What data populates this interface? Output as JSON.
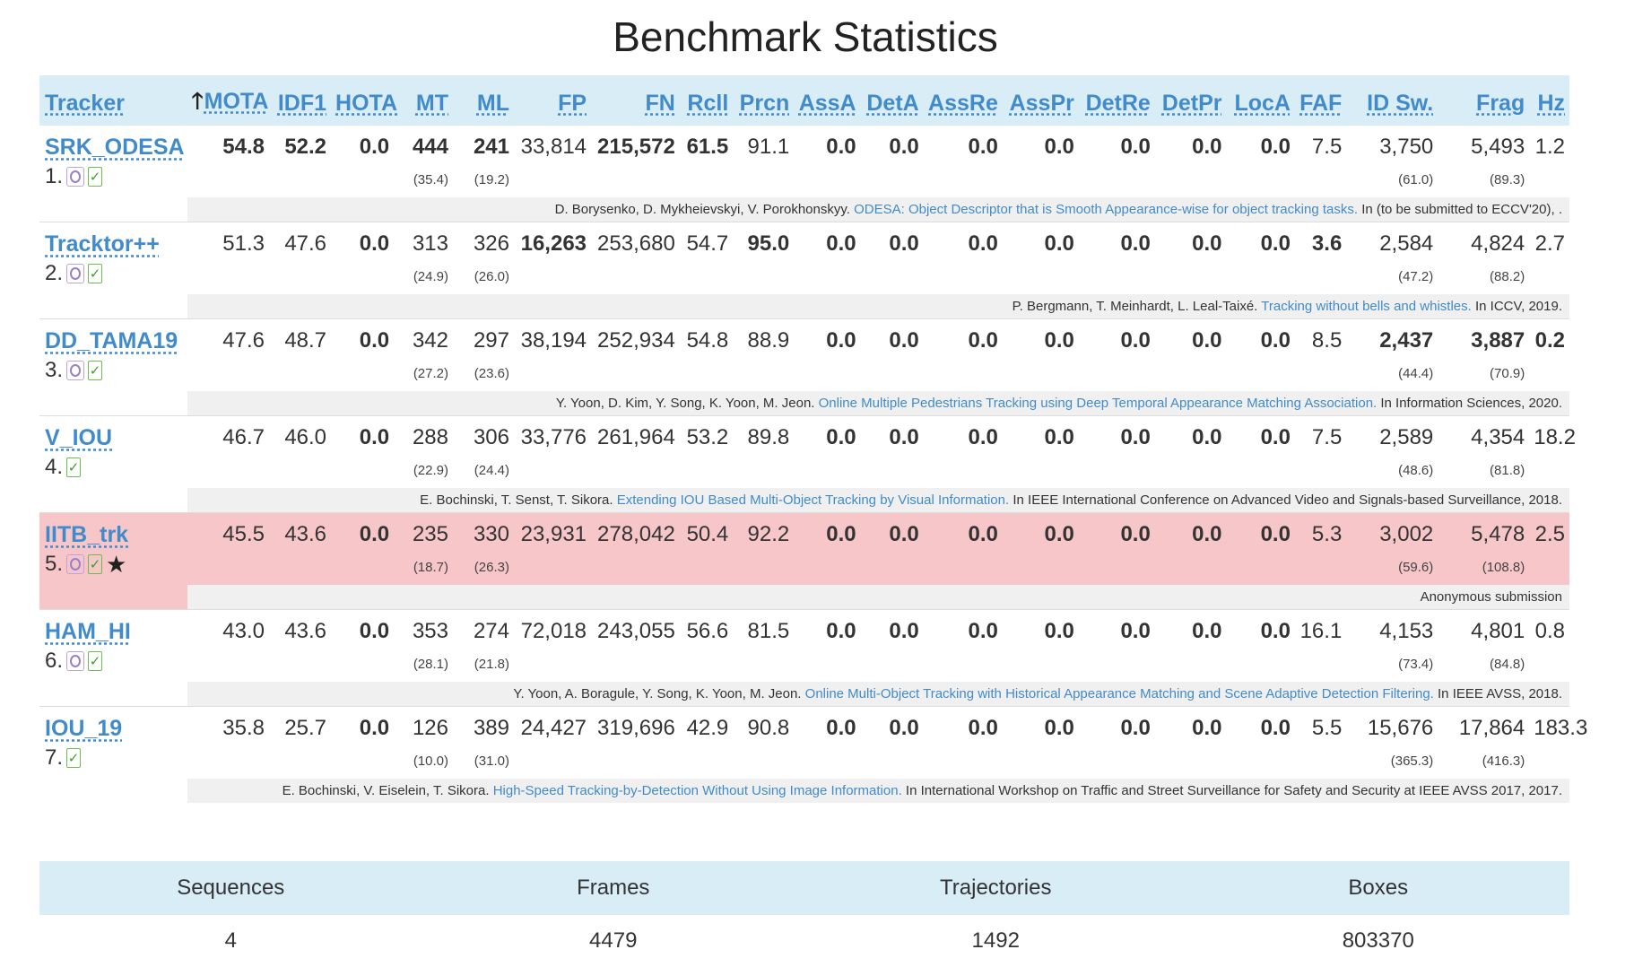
{
  "title": "Benchmark Statistics",
  "columns": {
    "tracker": "Tracker",
    "sort_arrow": "🡑",
    "mota": "MOTA",
    "idf1": "IDF1",
    "hota": "HOTA",
    "mt": "MT",
    "ml": "ML",
    "fp": "FP",
    "fn": "FN",
    "rcll": "Rcll",
    "prcn": "Prcn",
    "assa": "AssA",
    "deta": "DetA",
    "assre": "AssRe",
    "asspr": "AssPr",
    "detre": "DetRe",
    "detpr": "DetPr",
    "loca": "LocA",
    "faf": "FAF",
    "idsw": "ID Sw.",
    "frag": "Frag",
    "hz": "Hz"
  },
  "icons": {
    "online": "online-circle-icon",
    "check": "check-icon",
    "star": "star-icon"
  },
  "colors": {
    "header_bg": "#d9edf7",
    "link": "#428bca",
    "highlight": "#f7c6c9",
    "ref_bg": "#f0f0f0"
  },
  "rows": [
    {
      "name": "SRK_ODESA",
      "rank": "1.",
      "icons": [
        "online",
        "check"
      ],
      "mota": "54.8",
      "idf1": "52.2",
      "hota": "0.0",
      "mt": "444",
      "mt_pct": "(35.4)",
      "ml": "241",
      "ml_pct": "(19.2)",
      "fp": "33,814",
      "fn": "215,572",
      "rcll": "61.5",
      "prcn": "91.1",
      "assa": "0.0",
      "deta": "0.0",
      "assre": "0.0",
      "asspr": "0.0",
      "detre": "0.0",
      "detpr": "0.0",
      "loca": "0.0",
      "faf": "7.5",
      "idsw": "3,750",
      "idsw_pct": "(61.0)",
      "frag": "5,493",
      "frag_pct": "(89.3)",
      "hz": "1.2",
      "ref_authors": "D. Borysenko, D. Mykheievskyi, V. Porokhonskyy.",
      "ref_title": "ODESA: Object Descriptor that is Smooth Appearance-wise for object tracking tasks.",
      "ref_venue": "In (to be submitted to ECCV'20), ."
    },
    {
      "name": "Tracktor++",
      "rank": "2.",
      "icons": [
        "online",
        "check"
      ],
      "mota": "51.3",
      "idf1": "47.6",
      "hota": "0.0",
      "mt": "313",
      "mt_pct": "(24.9)",
      "ml": "326",
      "ml_pct": "(26.0)",
      "fp": "16,263",
      "fn": "253,680",
      "rcll": "54.7",
      "prcn": "95.0",
      "assa": "0.0",
      "deta": "0.0",
      "assre": "0.0",
      "asspr": "0.0",
      "detre": "0.0",
      "detpr": "0.0",
      "loca": "0.0",
      "faf": "3.6",
      "idsw": "2,584",
      "idsw_pct": "(47.2)",
      "frag": "4,824",
      "frag_pct": "(88.2)",
      "hz": "2.7",
      "ref_authors": "P. Bergmann, T. Meinhardt, L. Leal-Taixé.",
      "ref_title": "Tracking without bells and whistles.",
      "ref_venue": "In ICCV, 2019."
    },
    {
      "name": "DD_TAMA19",
      "rank": "3.",
      "icons": [
        "online",
        "check"
      ],
      "mota": "47.6",
      "idf1": "48.7",
      "hota": "0.0",
      "mt": "342",
      "mt_pct": "(27.2)",
      "ml": "297",
      "ml_pct": "(23.6)",
      "fp": "38,194",
      "fn": "252,934",
      "rcll": "54.8",
      "prcn": "88.9",
      "assa": "0.0",
      "deta": "0.0",
      "assre": "0.0",
      "asspr": "0.0",
      "detre": "0.0",
      "detpr": "0.0",
      "loca": "0.0",
      "faf": "8.5",
      "idsw": "2,437",
      "idsw_pct": "(44.4)",
      "frag": "3,887",
      "frag_pct": "(70.9)",
      "hz": "0.2",
      "ref_authors": "Y. Yoon, D. Kim, Y. Song, K. Yoon, M. Jeon.",
      "ref_title": "Online Multiple Pedestrians Tracking using Deep Temporal Appearance Matching Association.",
      "ref_venue": "In Information Sciences, 2020."
    },
    {
      "name": "V_IOU",
      "rank": "4.",
      "icons": [
        "check"
      ],
      "mota": "46.7",
      "idf1": "46.0",
      "hota": "0.0",
      "mt": "288",
      "mt_pct": "(22.9)",
      "ml": "306",
      "ml_pct": "(24.4)",
      "fp": "33,776",
      "fn": "261,964",
      "rcll": "53.2",
      "prcn": "89.8",
      "assa": "0.0",
      "deta": "0.0",
      "assre": "0.0",
      "asspr": "0.0",
      "detre": "0.0",
      "detpr": "0.0",
      "loca": "0.0",
      "faf": "7.5",
      "idsw": "2,589",
      "idsw_pct": "(48.6)",
      "frag": "4,354",
      "frag_pct": "(81.8)",
      "hz": "18.2",
      "ref_authors": "E. Bochinski, T. Senst, T. Sikora.",
      "ref_title": "Extending IOU Based Multi-Object Tracking by Visual Information.",
      "ref_venue": "In IEEE International Conference on Advanced Video and Signals-based Surveillance, 2018."
    },
    {
      "name": "IITB_trk",
      "rank": "5.",
      "icons": [
        "online",
        "check",
        "star"
      ],
      "highlight": true,
      "mota": "45.5",
      "idf1": "43.6",
      "hota": "0.0",
      "mt": "235",
      "mt_pct": "(18.7)",
      "ml": "330",
      "ml_pct": "(26.3)",
      "fp": "23,931",
      "fn": "278,042",
      "rcll": "50.4",
      "prcn": "92.2",
      "assa": "0.0",
      "deta": "0.0",
      "assre": "0.0",
      "asspr": "0.0",
      "detre": "0.0",
      "detpr": "0.0",
      "loca": "0.0",
      "faf": "5.3",
      "idsw": "3,002",
      "idsw_pct": "(59.6)",
      "frag": "5,478",
      "frag_pct": "(108.8)",
      "hz": "2.5",
      "ref_authors": "",
      "ref_title": "",
      "ref_venue": "Anonymous submission"
    },
    {
      "name": "HAM_HI",
      "rank": "6.",
      "icons": [
        "online",
        "check"
      ],
      "mota": "43.0",
      "idf1": "43.6",
      "hota": "0.0",
      "mt": "353",
      "mt_pct": "(28.1)",
      "ml": "274",
      "ml_pct": "(21.8)",
      "fp": "72,018",
      "fn": "243,055",
      "rcll": "56.6",
      "prcn": "81.5",
      "assa": "0.0",
      "deta": "0.0",
      "assre": "0.0",
      "asspr": "0.0",
      "detre": "0.0",
      "detpr": "0.0",
      "loca": "0.0",
      "faf": "16.1",
      "idsw": "4,153",
      "idsw_pct": "(73.4)",
      "frag": "4,801",
      "frag_pct": "(84.8)",
      "hz": "0.8",
      "ref_authors": "Y. Yoon, A. Boragule, Y. Song, K. Yoon, M. Jeon.",
      "ref_title": "Online Multi-Object Tracking with Historical Appearance Matching and Scene Adaptive Detection Filtering.",
      "ref_venue": "In IEEE AVSS, 2018."
    },
    {
      "name": "IOU_19",
      "rank": "7.",
      "icons": [
        "check"
      ],
      "mota": "35.8",
      "idf1": "25.7",
      "hota": "0.0",
      "mt": "126",
      "mt_pct": "(10.0)",
      "ml": "389",
      "ml_pct": "(31.0)",
      "fp": "24,427",
      "fn": "319,696",
      "rcll": "42.9",
      "prcn": "90.8",
      "assa": "0.0",
      "deta": "0.0",
      "assre": "0.0",
      "asspr": "0.0",
      "detre": "0.0",
      "detpr": "0.0",
      "loca": "0.0",
      "faf": "5.5",
      "idsw": "15,676",
      "idsw_pct": "(365.3)",
      "frag": "17,864",
      "frag_pct": "(416.3)",
      "hz": "183.3",
      "ref_authors": "E. Bochinski, V. Eiselein, T. Sikora.",
      "ref_title": "High-Speed Tracking-by-Detection Without Using Image Information.",
      "ref_venue": "In International Workshop on Traffic and Street Surveillance for Safety and Security at IEEE AVSS 2017, 2017."
    }
  ],
  "bold_cells": {
    "0": [
      "mota",
      "idf1",
      "hota",
      "mt",
      "ml",
      "fn",
      "rcll",
      "assa",
      "deta",
      "assre",
      "asspr",
      "detre",
      "detpr",
      "loca"
    ],
    "1": [
      "hota",
      "fp",
      "prcn",
      "assa",
      "deta",
      "assre",
      "asspr",
      "detre",
      "detpr",
      "loca",
      "faf"
    ],
    "2": [
      "hota",
      "assa",
      "deta",
      "assre",
      "asspr",
      "detre",
      "detpr",
      "loca",
      "idsw",
      "frag",
      "hz"
    ],
    "3": [
      "hota",
      "assa",
      "deta",
      "assre",
      "asspr",
      "detre",
      "detpr",
      "loca"
    ],
    "4": [
      "hota",
      "assa",
      "deta",
      "assre",
      "asspr",
      "detre",
      "detpr",
      "loca"
    ],
    "5": [
      "hota",
      "assa",
      "deta",
      "assre",
      "asspr",
      "detre",
      "detpr",
      "loca"
    ],
    "6": [
      "hota",
      "assa",
      "deta",
      "assre",
      "asspr",
      "detre",
      "detpr",
      "loca"
    ]
  },
  "stats": {
    "headers": [
      "Sequences",
      "Frames",
      "Trajectories",
      "Boxes"
    ],
    "values": [
      "4",
      "4479",
      "1492",
      "803370"
    ]
  }
}
